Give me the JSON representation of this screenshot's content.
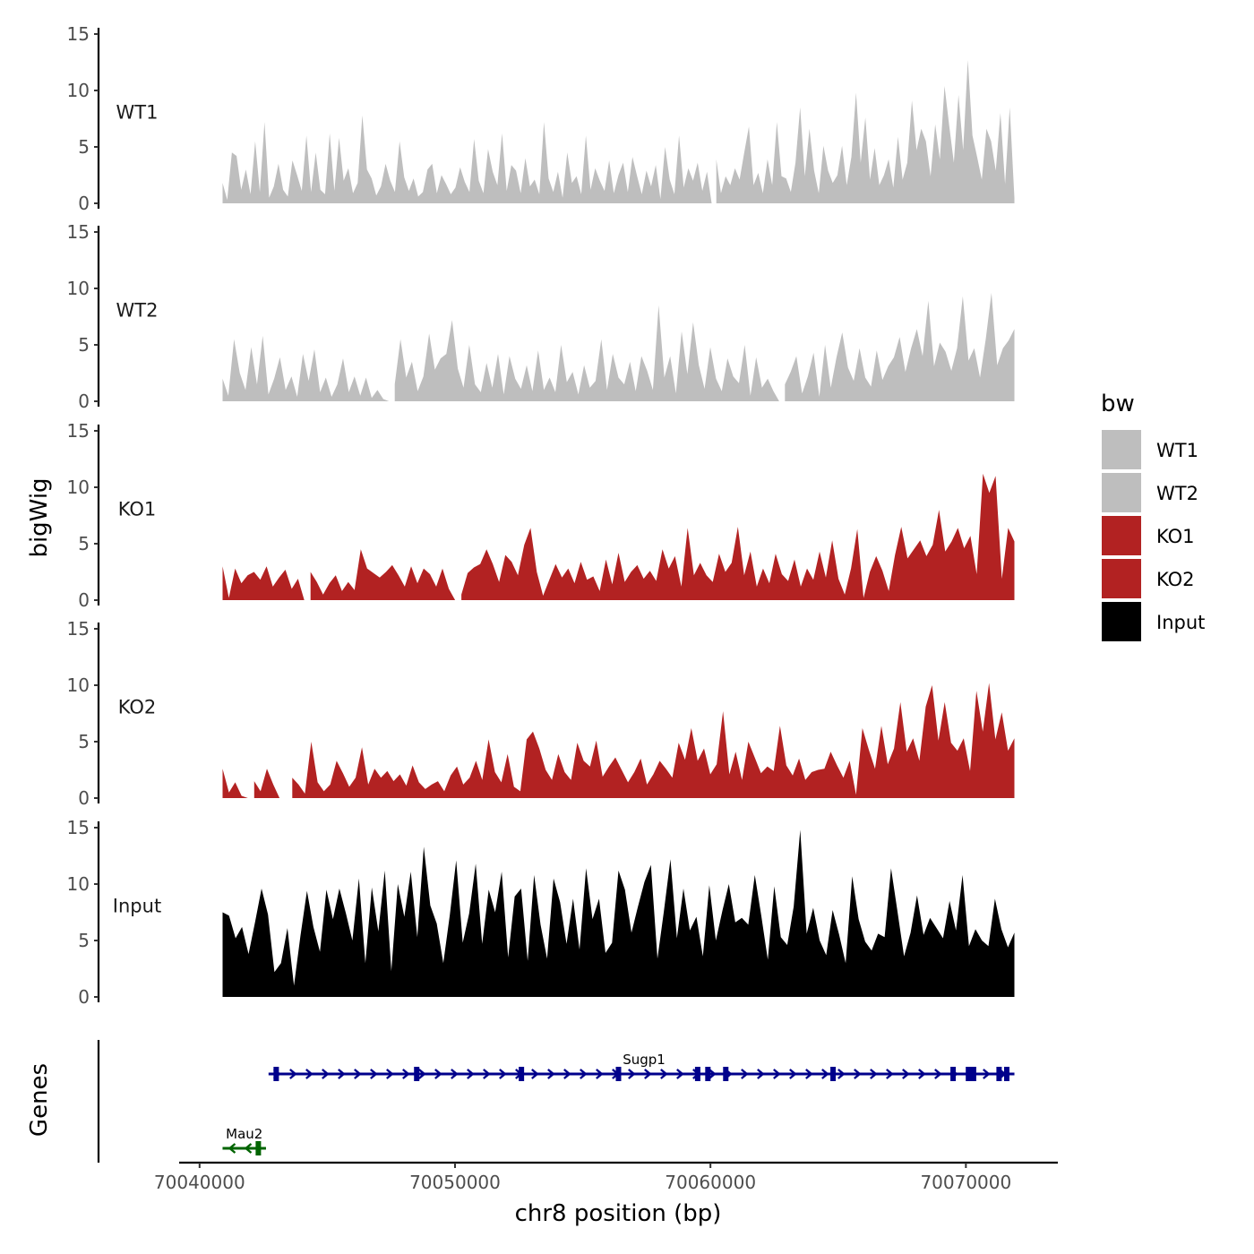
{
  "chart_data": {
    "type": "area",
    "title": "",
    "xlabel": "chr8 position (bp)",
    "ylabel": "bigWig",
    "genes_panel_label": "Genes",
    "xlim": [
      70039200,
      70073600
    ],
    "x_ticks": [
      70040000,
      70050000,
      70060000,
      70070000
    ],
    "x_tick_labels": [
      "70040000",
      "70050000",
      "70060000",
      "70070000"
    ],
    "ylim": [
      0,
      15
    ],
    "y_ticks": [
      0,
      5,
      10,
      15
    ],
    "y_tick_labels": [
      "0",
      "5",
      "10",
      "15"
    ],
    "track_start": 70040900,
    "track_end": 70071900,
    "legend": {
      "title": "bw",
      "position": "right",
      "entries": [
        {
          "label": "WT1",
          "color": "#bebebe"
        },
        {
          "label": "WT2",
          "color": "#bebebe"
        },
        {
          "label": "KO1",
          "color": "#b22222"
        },
        {
          "label": "KO2",
          "color": "#b22222"
        },
        {
          "label": "Input",
          "color": "#000000"
        }
      ]
    },
    "series": [
      {
        "name": "WT1",
        "color": "#bebebe",
        "values": [
          1.8,
          0.3,
          4.5,
          4.2,
          1.2,
          3.0,
          0.8,
          5.5,
          1.0,
          7.2,
          0.5,
          1.5,
          3.5,
          1.2,
          0.6,
          3.8,
          2.5,
          1.1,
          6.0,
          1.0,
          4.5,
          1.2,
          0.8,
          6.2,
          1.1,
          5.8,
          2.0,
          3.1,
          0.9,
          1.8,
          7.8,
          3.0,
          2.2,
          0.7,
          1.5,
          3.5,
          2.0,
          1.0,
          5.5,
          2.3,
          1.1,
          2.2,
          0.6,
          1.0,
          3.0,
          3.5,
          0.9,
          2.5,
          1.7,
          0.8,
          1.4,
          3.2,
          1.9,
          1.0,
          5.7,
          2.0,
          0.9,
          4.8,
          2.8,
          1.6,
          6.2,
          1.1,
          3.4,
          2.9,
          0.9,
          4.0,
          1.5,
          2.1,
          0.8,
          7.2,
          2.2,
          1.0,
          2.8,
          0.5,
          4.5,
          1.8,
          2.4,
          0.8,
          6.0,
          1.2,
          3.1,
          2.0,
          1.1,
          3.8,
          0.9,
          2.5,
          3.6,
          1.0,
          4.1,
          2.4,
          0.8,
          2.9,
          1.5,
          3.4,
          0.4,
          5.0,
          2.1,
          0.8,
          6.0,
          1.4,
          3.1,
          2.0,
          3.6,
          1.1,
          2.8,
          0.0,
          3.9,
          0.9,
          2.4,
          1.6,
          3.1,
          2.1,
          4.5,
          6.8,
          1.6,
          2.7,
          0.9,
          3.9,
          1.6,
          7.2,
          2.4,
          2.2,
          1.0,
          3.6,
          8.5,
          2.4,
          6.6,
          2.9,
          0.9,
          5.1,
          2.9,
          1.8,
          2.5,
          5.1,
          1.6,
          4.1,
          9.8,
          3.6,
          7.6,
          2.1,
          4.9,
          1.6,
          2.5,
          3.9,
          1.4,
          5.9,
          2.1,
          3.6,
          9.1,
          4.7,
          6.6,
          5.5,
          2.4,
          7.0,
          3.9,
          10.4,
          6.9,
          3.6,
          9.6,
          4.7,
          12.7,
          6.0,
          4.1,
          2.1,
          6.6,
          5.5,
          2.9,
          8.0,
          1.7,
          8.5,
          0.5
        ]
      },
      {
        "name": "WT2",
        "color": "#bebebe",
        "values": [
          2.0,
          0.5,
          5.5,
          2.5,
          1.0,
          4.8,
          1.5,
          5.8,
          0.6,
          2.0,
          3.9,
          1.0,
          2.2,
          0.4,
          4.2,
          1.8,
          4.6,
          0.8,
          2.1,
          0.4,
          1.5,
          3.8,
          0.8,
          2.2,
          0.5,
          2.1,
          0.3,
          1.0,
          0.2,
          0.0,
          1.5,
          5.5,
          2.1,
          3.5,
          0.9,
          2.2,
          6.0,
          2.8,
          3.8,
          4.2,
          7.2,
          2.9,
          1.2,
          5.0,
          1.5,
          0.8,
          3.4,
          1.2,
          4.2,
          0.6,
          4.0,
          2.0,
          1.1,
          3.2,
          0.9,
          4.5,
          1.0,
          2.1,
          0.8,
          5.0,
          1.7,
          2.6,
          0.6,
          3.2,
          1.2,
          1.8,
          5.5,
          1.0,
          4.2,
          2.1,
          1.5,
          3.5,
          0.9,
          4.0,
          2.7,
          1.0,
          8.5,
          2.1,
          4.0,
          0.7,
          6.2,
          2.4,
          7.0,
          3.2,
          1.1,
          4.8,
          2.0,
          0.9,
          3.8,
          2.2,
          1.6,
          5.0,
          0.5,
          3.9,
          1.2,
          2.0,
          0.9,
          0.0,
          1.5,
          2.6,
          4.0,
          0.7,
          2.2,
          4.3,
          0.4,
          5.0,
          1.2,
          3.9,
          6.1,
          3.0,
          1.8,
          4.7,
          2.1,
          1.3,
          4.5,
          1.9,
          3.1,
          3.9,
          5.7,
          2.6,
          4.7,
          6.4,
          4.0,
          8.9,
          3.1,
          5.2,
          4.4,
          2.7,
          4.7,
          9.3,
          3.6,
          4.7,
          2.1,
          5.5,
          9.6,
          3.2,
          4.7,
          5.4,
          6.4
        ]
      },
      {
        "name": "KO1",
        "color": "#b22222",
        "values": [
          3.0,
          0.2,
          2.8,
          1.5,
          2.2,
          2.5,
          1.8,
          3.0,
          1.2,
          2.0,
          2.7,
          1.0,
          1.9,
          0.0,
          2.5,
          1.6,
          0.5,
          1.5,
          2.2,
          0.8,
          1.6,
          0.9,
          4.5,
          2.8,
          2.4,
          2.0,
          2.5,
          3.1,
          2.2,
          1.2,
          3.0,
          1.5,
          2.8,
          2.3,
          1.2,
          2.8,
          1.0,
          0.0,
          0.5,
          2.4,
          2.9,
          3.2,
          4.5,
          3.2,
          1.6,
          4.0,
          3.4,
          2.2,
          4.9,
          6.4,
          2.5,
          0.4,
          1.8,
          3.2,
          2.0,
          2.8,
          1.5,
          3.4,
          1.8,
          2.1,
          0.8,
          3.6,
          1.4,
          4.2,
          1.6,
          2.5,
          3.1,
          1.9,
          2.6,
          1.7,
          4.5,
          2.8,
          3.9,
          1.2,
          6.4,
          2.2,
          3.3,
          2.2,
          1.6,
          4.1,
          2.5,
          3.3,
          6.5,
          2.2,
          4.3,
          1.2,
          2.8,
          1.5,
          4.1,
          2.3,
          1.7,
          3.6,
          1.2,
          2.8,
          1.8,
          4.3,
          2.0,
          5.3,
          1.9,
          0.5,
          2.8,
          6.3,
          0.2,
          2.5,
          3.9,
          2.6,
          0.8,
          4.0,
          6.5,
          3.7,
          4.5,
          5.3,
          3.9,
          4.9,
          8.0,
          4.3,
          5.2,
          6.4,
          4.6,
          5.7,
          2.3,
          11.2,
          9.5,
          11.0,
          1.9,
          6.4,
          5.2
        ]
      },
      {
        "name": "KO2",
        "color": "#b22222",
        "values": [
          2.6,
          0.5,
          1.4,
          0.2,
          0.0,
          1.5,
          0.6,
          2.6,
          1.2,
          0.0,
          0.0,
          1.8,
          1.2,
          0.4,
          5.0,
          1.4,
          0.6,
          1.2,
          3.3,
          2.2,
          1.0,
          1.8,
          4.5,
          1.2,
          2.6,
          1.8,
          2.4,
          1.5,
          2.1,
          1.1,
          2.9,
          1.4,
          0.8,
          1.2,
          1.5,
          0.6,
          2.0,
          2.8,
          1.2,
          1.8,
          3.3,
          1.6,
          5.2,
          2.3,
          1.4,
          3.9,
          1.0,
          0.6,
          5.2,
          5.9,
          4.4,
          2.5,
          1.6,
          3.9,
          2.3,
          1.6,
          4.9,
          3.3,
          2.8,
          5.1,
          1.9,
          2.8,
          3.6,
          2.5,
          1.4,
          2.3,
          3.5,
          1.2,
          2.1,
          3.3,
          2.6,
          1.8,
          4.9,
          3.4,
          6.2,
          3.3,
          4.4,
          2.1,
          3.0,
          7.7,
          2.1,
          4.1,
          1.6,
          5.0,
          3.6,
          2.2,
          2.8,
          2.4,
          6.4,
          2.9,
          2.0,
          3.5,
          1.6,
          2.3,
          2.5,
          2.6,
          4.1,
          2.9,
          1.8,
          3.3,
          0.3,
          6.2,
          4.3,
          2.6,
          6.4,
          3.0,
          4.4,
          8.5,
          4.1,
          5.3,
          3.3,
          8.1,
          10.0,
          5.1,
          8.5,
          4.9,
          4.2,
          5.3,
          2.4,
          9.5,
          5.9,
          10.2,
          5.2,
          7.6,
          4.2,
          5.3
        ]
      },
      {
        "name": "Input",
        "color": "#000000",
        "values": [
          7.5,
          7.2,
          5.2,
          6.2,
          3.8,
          6.6,
          9.6,
          7.3,
          2.2,
          3.0,
          6.1,
          1.0,
          5.4,
          9.4,
          6.2,
          4.0,
          9.5,
          6.9,
          9.6,
          7.4,
          5.0,
          10.5,
          3.0,
          9.7,
          5.8,
          11.2,
          2.3,
          10.0,
          7.1,
          11.1,
          5.3,
          13.3,
          8.1,
          6.5,
          3.0,
          7.2,
          12.1,
          4.8,
          7.4,
          11.8,
          4.7,
          9.5,
          7.5,
          11.1,
          3.5,
          8.9,
          9.6,
          3.2,
          10.8,
          6.4,
          3.4,
          10.5,
          8.4,
          4.7,
          8.7,
          4.2,
          11.4,
          6.9,
          8.7,
          3.9,
          4.8,
          11.2,
          9.5,
          5.7,
          8.0,
          10.2,
          11.7,
          3.4,
          7.6,
          12.2,
          5.2,
          9.6,
          5.9,
          7.1,
          3.6,
          9.9,
          5.0,
          7.6,
          10.0,
          6.6,
          7.0,
          6.4,
          10.8,
          7.2,
          3.3,
          9.8,
          5.3,
          4.6,
          8.0,
          14.8,
          5.6,
          7.9,
          5.0,
          3.7,
          7.7,
          5.5,
          3.0,
          10.7,
          6.9,
          4.9,
          4.1,
          5.6,
          5.3,
          11.4,
          7.5,
          3.6,
          5.7,
          9.0,
          5.5,
          7.0,
          6.1,
          5.2,
          8.5,
          5.9,
          10.8,
          4.5,
          6.0,
          5.0,
          4.5,
          8.7,
          6.0,
          4.4,
          5.7
        ]
      }
    ],
    "genes": [
      {
        "name": "Sugp1",
        "strand": "+",
        "color": "#00008b",
        "start": 70042700,
        "end": 70071900,
        "exons": [
          70043000,
          70048500,
          70052600,
          70056400,
          70059500,
          70059900,
          70060600,
          70064800,
          70069500,
          70070100,
          70070300,
          70071300,
          70071600
        ]
      },
      {
        "name": "Mau2",
        "strand": "-",
        "color": "#006400",
        "start": 70040900,
        "end": 70042600,
        "exons": [
          70042300
        ]
      }
    ]
  }
}
